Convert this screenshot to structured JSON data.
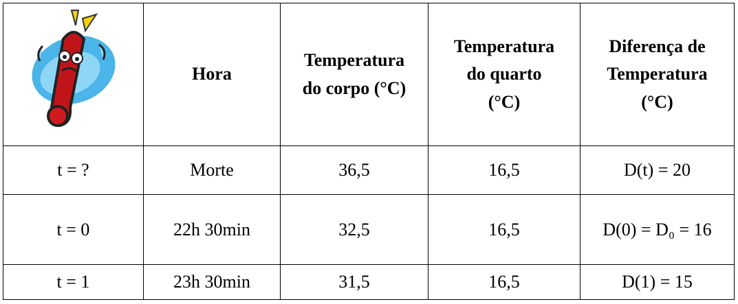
{
  "table": {
    "header": [
      [],
      [
        "Hora"
      ],
      [
        "Temperatura",
        "do corpo (°C)"
      ],
      [
        "Temperatura",
        "do quarto",
        "(°C)"
      ],
      [
        "Diferença de",
        "Temperatura",
        "(°C)"
      ]
    ],
    "rows": [
      [
        "t = ?",
        "Morte",
        "36,5",
        "16,5",
        "D(t) = 20"
      ],
      [
        "t = 0",
        "22h 30min",
        "32,5",
        "16,5",
        "D(0) = D₀ = 16"
      ],
      [
        "t = 1",
        "23h 30min",
        "31,5",
        "16,5",
        "D(1) = 15"
      ]
    ]
  }
}
